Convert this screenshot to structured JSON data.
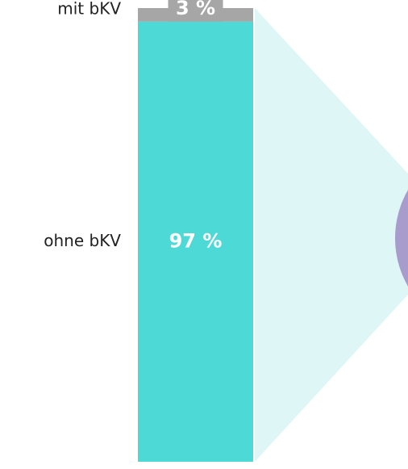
{
  "chart_data": {
    "type": "bar",
    "stacked": true,
    "ylim": [
      0,
      100
    ],
    "series": [
      {
        "name": "ohne bKV",
        "color": "#4dd9d5",
        "values": [
          97
        ],
        "value_labels": [
          "97 %"
        ]
      },
      {
        "name": "mit bKV",
        "color": "#a6a6a6",
        "values": [
          3
        ],
        "value_labels": [
          "3 %"
        ]
      }
    ]
  }
}
